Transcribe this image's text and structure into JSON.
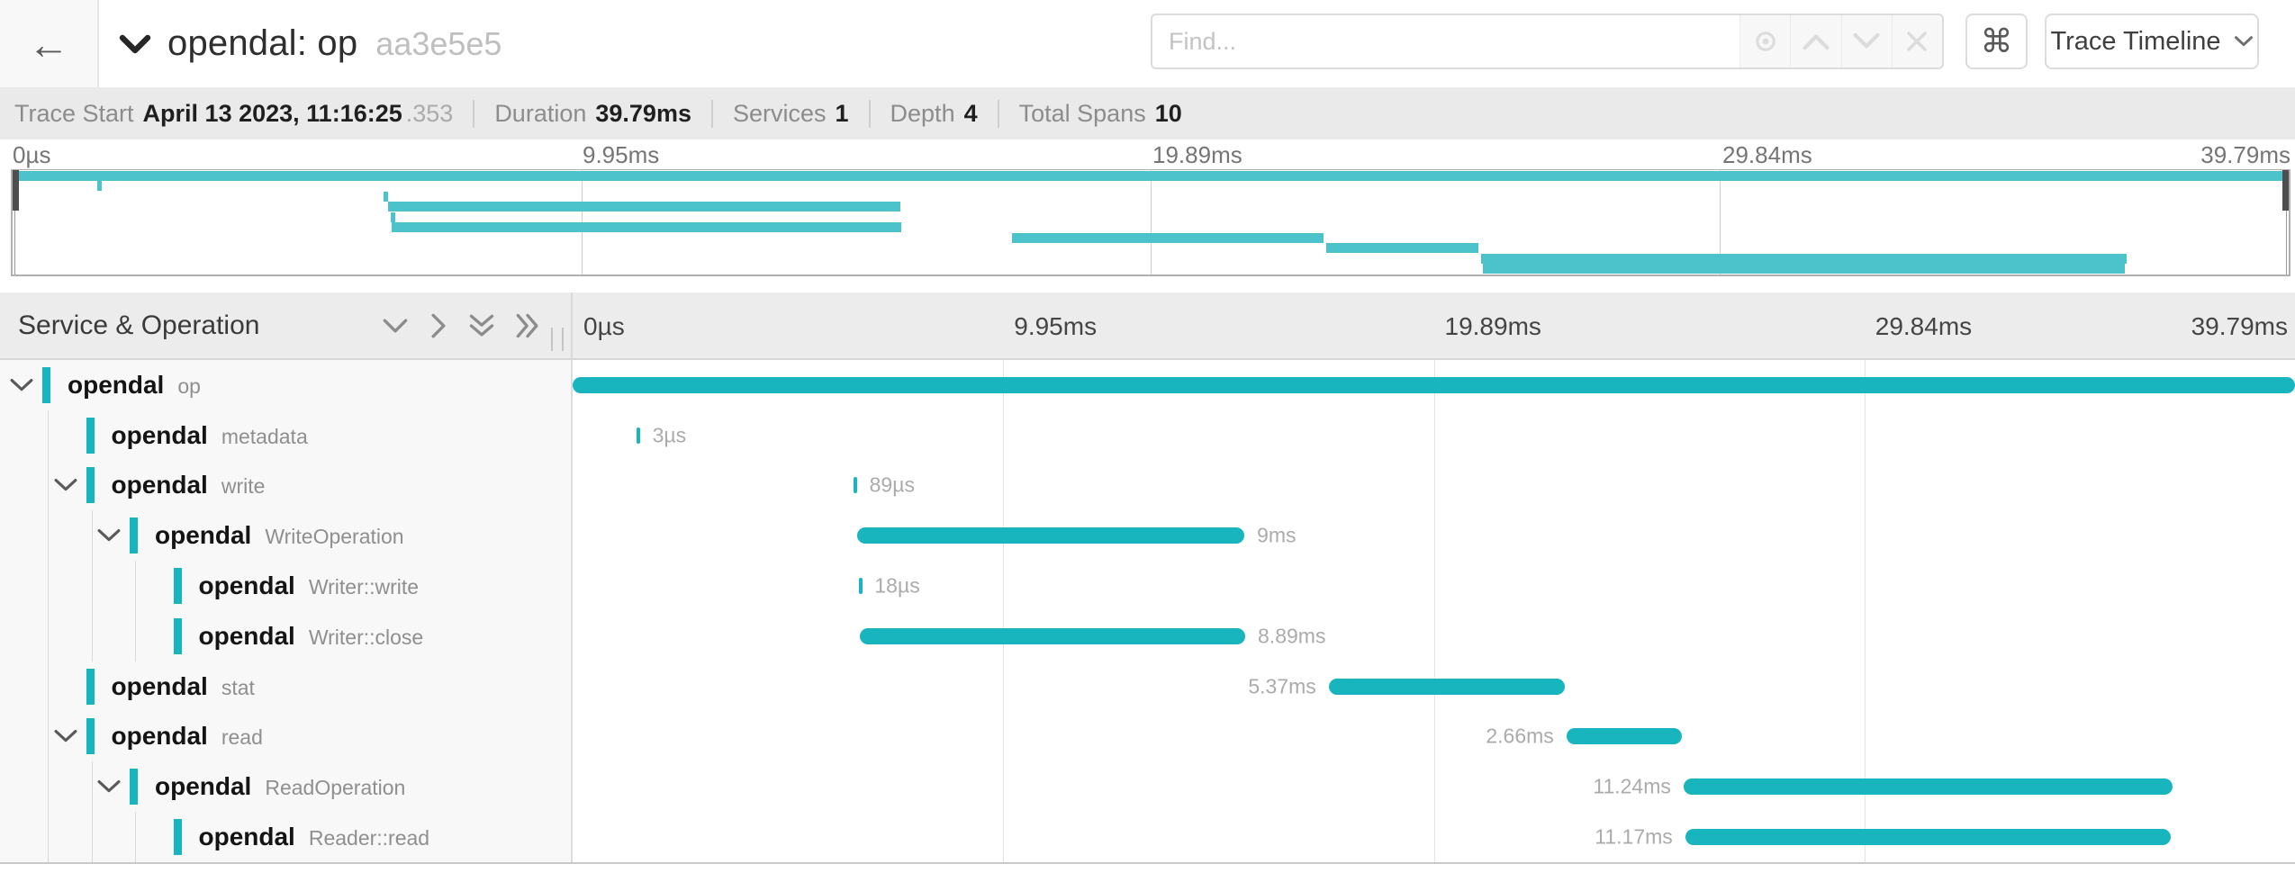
{
  "header": {
    "title": "opendal: op",
    "trace_id": "aa3e5e5",
    "view_selector": "Trace Timeline",
    "icons": {
      "back": "←",
      "keyboard_shortcuts": "⌘"
    }
  },
  "find": {
    "placeholder": "Find..."
  },
  "summary": {
    "items": [
      {
        "label": "Trace Start",
        "value": "April 13 2023, 11:16:25",
        "suffix": ".353"
      },
      {
        "label": "Duration",
        "value": "39.79ms",
        "suffix": ""
      },
      {
        "label": "Services",
        "value": "1",
        "suffix": ""
      },
      {
        "label": "Depth",
        "value": "4",
        "suffix": ""
      },
      {
        "label": "Total Spans",
        "value": "10",
        "suffix": ""
      }
    ]
  },
  "timeline": {
    "left_header": "Service & Operation",
    "axis_ticks": [
      "0µs",
      "9.95ms",
      "19.89ms",
      "29.84ms",
      "39.79ms"
    ],
    "gridline_pcts": [
      25,
      50,
      75
    ]
  },
  "spans": [
    {
      "service": "opendal",
      "operation": "op",
      "depth": 0,
      "has_children": true,
      "start_pct": 0,
      "width_pct": 100,
      "duration": "",
      "label_side": "right"
    },
    {
      "service": "opendal",
      "operation": "metadata",
      "depth": 1,
      "has_children": false,
      "start_pct": 3.7,
      "width_pct": 0.2,
      "duration": "3µs",
      "label_side": "right"
    },
    {
      "service": "opendal",
      "operation": "write",
      "depth": 1,
      "has_children": true,
      "start_pct": 16.3,
      "width_pct": 0.2,
      "duration": "89µs",
      "label_side": "right"
    },
    {
      "service": "opendal",
      "operation": "WriteOperation",
      "depth": 2,
      "has_children": true,
      "start_pct": 16.5,
      "width_pct": 22.5,
      "duration": "9ms",
      "label_side": "right"
    },
    {
      "service": "opendal",
      "operation": "Writer::write",
      "depth": 3,
      "has_children": false,
      "start_pct": 16.6,
      "width_pct": 0.2,
      "duration": "18µs",
      "label_side": "right"
    },
    {
      "service": "opendal",
      "operation": "Writer::close",
      "depth": 3,
      "has_children": false,
      "start_pct": 16.65,
      "width_pct": 22.4,
      "duration": "8.89ms",
      "label_side": "right"
    },
    {
      "service": "opendal",
      "operation": "stat",
      "depth": 1,
      "has_children": false,
      "start_pct": 43.9,
      "width_pct": 13.7,
      "duration": "5.37ms",
      "label_side": "left"
    },
    {
      "service": "opendal",
      "operation": "read",
      "depth": 1,
      "has_children": true,
      "start_pct": 57.7,
      "width_pct": 6.7,
      "duration": "2.66ms",
      "label_side": "left"
    },
    {
      "service": "opendal",
      "operation": "ReadOperation",
      "depth": 2,
      "has_children": true,
      "start_pct": 64.5,
      "width_pct": 28.4,
      "duration": "11.24ms",
      "label_side": "left"
    },
    {
      "service": "opendal",
      "operation": "Reader::read",
      "depth": 3,
      "has_children": false,
      "start_pct": 64.6,
      "width_pct": 28.2,
      "duration": "11.17ms",
      "label_side": "left"
    }
  ],
  "colors": {
    "span_bar": "#18b5bf",
    "minimap_bar": "#4cc3cb"
  }
}
